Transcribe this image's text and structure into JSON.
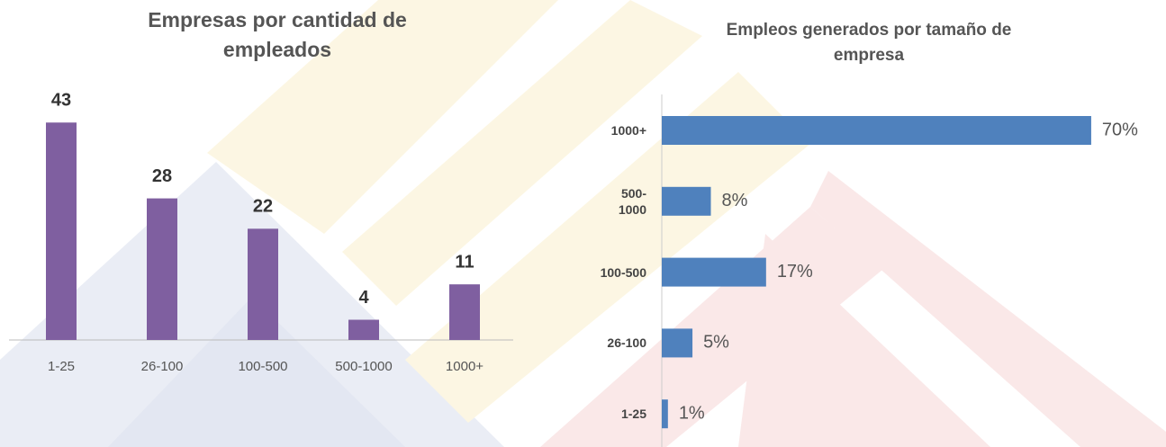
{
  "chart_data": [
    {
      "type": "bar",
      "title": "Empresas por cantidad de empleados",
      "categories": [
        "1-25",
        "26-100",
        "100-500",
        "500-1000",
        "1000+"
      ],
      "values": [
        43,
        28,
        22,
        4,
        11
      ],
      "color": "#7f5fa0",
      "ylim": [
        0,
        45
      ]
    },
    {
      "type": "barh",
      "title": "Empleos generados por tamaño de empresa",
      "categories": [
        "1000+",
        "500-1000",
        "100-500",
        "26-100",
        "1-25"
      ],
      "values": [
        70,
        8,
        17,
        5,
        1
      ],
      "value_labels": [
        "70%",
        "8%",
        "17%",
        "5%",
        "1%"
      ],
      "color": "#4f81bd",
      "xlim": [
        0,
        75
      ]
    }
  ]
}
